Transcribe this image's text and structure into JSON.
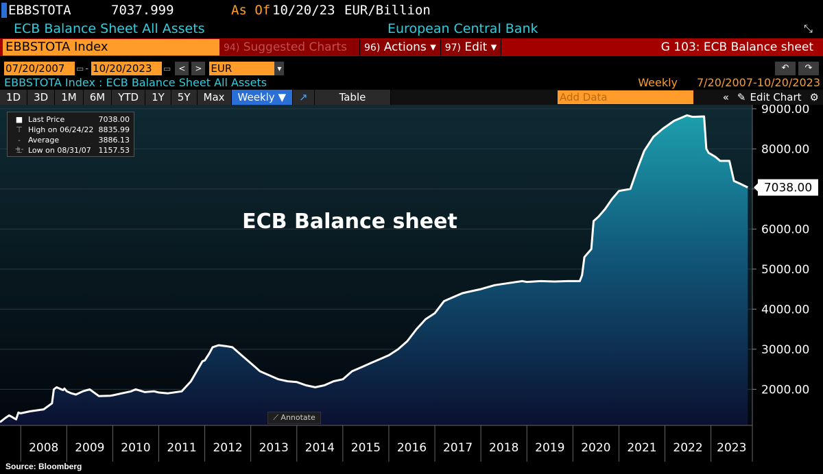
{
  "header": {
    "ticker": "EBBSTOTA",
    "last_value": "7037.999",
    "as_of_label": "As Of",
    "as_of_date": "10/20/23",
    "units": "EUR/Billion",
    "description": "ECB Balance Sheet All Assets",
    "source_name": "European Central Bank"
  },
  "toolbar": {
    "index_field": "EBBSTOTA Index",
    "suggested_num": "94)",
    "suggested_label": "Suggested Charts",
    "actions_num": "96)",
    "actions_label": "Actions ▾",
    "edit_num": "97)",
    "edit_label": "Edit ▾",
    "graph_title": "G 103: ECB Balance sheet"
  },
  "date_range": {
    "start": "07/20/2007",
    "end": "10/20/2023",
    "currency": "EUR"
  },
  "series_header": {
    "label": "EBBSTOTA Index : ECB Balance Sheet All Assets",
    "frequency": "Weekly",
    "range": "7/20/2007-10/20/2023"
  },
  "periods": [
    "1D",
    "3D",
    "1M",
    "6M",
    "YTD",
    "1Y",
    "5Y",
    "Max"
  ],
  "period_select": "Weekly ▼",
  "table_label": "Table",
  "add_data_placeholder": "Add Data",
  "edit_chart_label": "Edit Chart",
  "legend": {
    "last_price_label": "Last Price",
    "last_price_value": "7038.00",
    "high_label": "High on 06/24/22",
    "high_value": "8835.99",
    "average_label": "Average",
    "average_value": "3886.13",
    "low_label": "Low on 08/31/07",
    "low_value": "1157.53"
  },
  "annotate_label": "Annotate",
  "source_note": "Source: Bloomberg",
  "colors": {
    "accent_orange": "#ff9c2a",
    "accent_cyan": "#33ccdd",
    "menu_red": "#a50000",
    "series_line": "#ffffff",
    "area_top": "#1d9fad",
    "area_bottom": "#0b1030"
  },
  "chart_data": {
    "type": "area",
    "title": "ECB Balance sheet",
    "ylim": [
      1100,
      9100
    ],
    "yticks": [
      2000,
      3000,
      4000,
      5000,
      6000,
      7000,
      8000,
      9000
    ],
    "ytick_labels": [
      "2000.00",
      "3000.00",
      "4000.00",
      "5000.00",
      "6000.00",
      "7000.00",
      "8000.00",
      "9000.00"
    ],
    "xlim": [
      2007.55,
      2023.9
    ],
    "xticks": [
      2008,
      2009,
      2010,
      2011,
      2012,
      2013,
      2014,
      2015,
      2016,
      2017,
      2018,
      2019,
      2020,
      2021,
      2022,
      2023
    ],
    "last_value_label": "7038.00",
    "series": [
      {
        "name": "Last Price",
        "x": [
          2007.55,
          2007.66,
          2007.75,
          2007.9,
          2007.95,
          2008.0,
          2008.2,
          2008.5,
          2008.68,
          2008.72,
          2008.78,
          2008.92,
          2008.95,
          2009.0,
          2009.1,
          2009.2,
          2009.35,
          2009.5,
          2009.7,
          2009.95,
          2010.0,
          2010.2,
          2010.4,
          2010.5,
          2010.7,
          2010.9,
          2011.0,
          2011.2,
          2011.5,
          2011.7,
          2011.85,
          2011.95,
          2012.0,
          2012.1,
          2012.17,
          2012.3,
          2012.45,
          2012.6,
          2012.8,
          2013.0,
          2013.2,
          2013.4,
          2013.6,
          2013.8,
          2014.0,
          2014.2,
          2014.4,
          2014.6,
          2014.8,
          2015.0,
          2015.2,
          2015.4,
          2015.6,
          2015.8,
          2016.0,
          2016.2,
          2016.4,
          2016.6,
          2016.8,
          2017.0,
          2017.2,
          2017.4,
          2017.6,
          2017.8,
          2018.0,
          2018.3,
          2018.6,
          2018.9,
          2019.0,
          2019.3,
          2019.6,
          2019.9,
          2020.0,
          2020.15,
          2020.2,
          2020.25,
          2020.4,
          2020.45,
          2020.55,
          2020.7,
          2020.85,
          2021.0,
          2021.25,
          2021.4,
          2021.55,
          2021.75,
          2021.95,
          2022.2,
          2022.48,
          2022.6,
          2022.85,
          2022.9,
          2022.95,
          2023.1,
          2023.2,
          2023.4,
          2023.5,
          2023.6,
          2023.8
        ],
        "values": [
          1180,
          1280,
          1350,
          1250,
          1420,
          1400,
          1450,
          1500,
          1650,
          2000,
          2050,
          1980,
          2020,
          1950,
          1900,
          1870,
          1950,
          2000,
          1830,
          1840,
          1850,
          1900,
          1950,
          2000,
          1930,
          1950,
          1920,
          1900,
          1950,
          2200,
          2500,
          2700,
          2720,
          2900,
          3050,
          3100,
          3080,
          3050,
          2850,
          2650,
          2450,
          2350,
          2250,
          2200,
          2180,
          2100,
          2050,
          2100,
          2200,
          2250,
          2450,
          2550,
          2650,
          2750,
          2850,
          3000,
          3200,
          3500,
          3750,
          3900,
          4200,
          4300,
          4400,
          4450,
          4500,
          4600,
          4650,
          4700,
          4680,
          4700,
          4690,
          4700,
          4700,
          4700,
          4850,
          5300,
          5500,
          6200,
          6300,
          6500,
          6750,
          6950,
          7000,
          7500,
          7950,
          8300,
          8500,
          8700,
          8836,
          8800,
          8810,
          8000,
          7900,
          7800,
          7700,
          7700,
          7200,
          7150,
          7038
        ]
      }
    ]
  }
}
